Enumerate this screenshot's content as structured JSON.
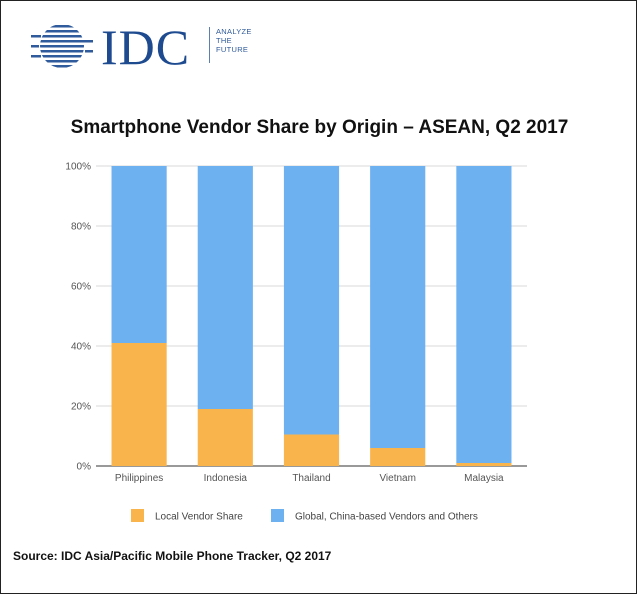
{
  "logo": {
    "name": "IDC",
    "tagline": [
      "ANALYZE",
      "THE",
      "FUTURE"
    ]
  },
  "source_note": "Source: IDC Asia/Pacific Mobile Phone Tracker, Q2 2017",
  "chart_data": {
    "type": "bar",
    "stacked": true,
    "title": "Smartphone Vendor Share by Origin – ASEAN, Q2 2017",
    "xlabel": "",
    "ylabel": "",
    "categories": [
      "Philippines",
      "Indonesia",
      "Thailand",
      "Vietnam",
      "Malaysia"
    ],
    "ylim": [
      0,
      100
    ],
    "yticks": [
      "0%",
      "20%",
      "40%",
      "60%",
      "80%",
      "100%"
    ],
    "series": [
      {
        "name": "Local Vendor Share",
        "values": [
          41,
          19,
          10.5,
          6,
          1
        ],
        "color": "#F9B54C"
      },
      {
        "name": "Global, China-based Vendors and Others",
        "values": [
          59,
          81,
          89.5,
          94,
          99
        ],
        "color": "#6EB1F1"
      }
    ],
    "grid": true,
    "legend_position": "bottom"
  }
}
